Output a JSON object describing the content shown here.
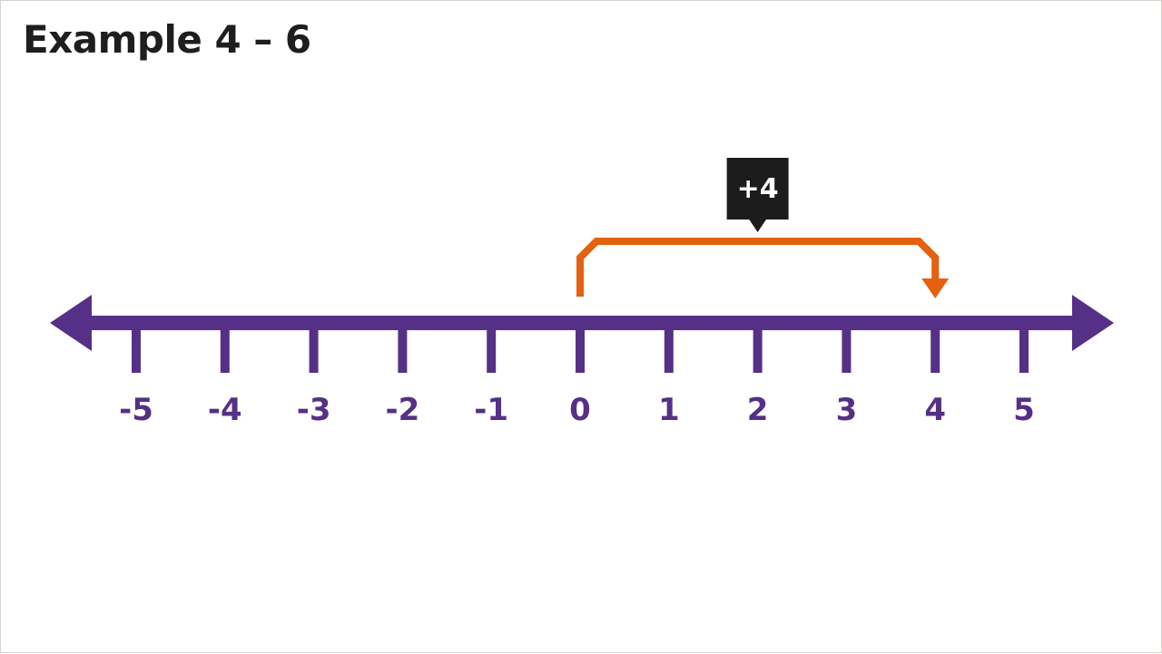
{
  "title": "Example 4 – 6",
  "number_line": {
    "ticks": [
      -5,
      -4,
      -3,
      -2,
      -1,
      0,
      1,
      2,
      3,
      4,
      5
    ],
    "tick_labels": [
      "-5",
      "-4",
      "-3",
      "-2",
      "-1",
      "0",
      "1",
      "2",
      "3",
      "4",
      "5"
    ]
  },
  "jump": {
    "from": 0,
    "to": 4,
    "label": "+4"
  },
  "colors": {
    "line": "#563087",
    "jump": "#e5610f",
    "label_bg": "#1c1c1c",
    "label_text": "#ffffff",
    "title": "#1e1e1e"
  }
}
